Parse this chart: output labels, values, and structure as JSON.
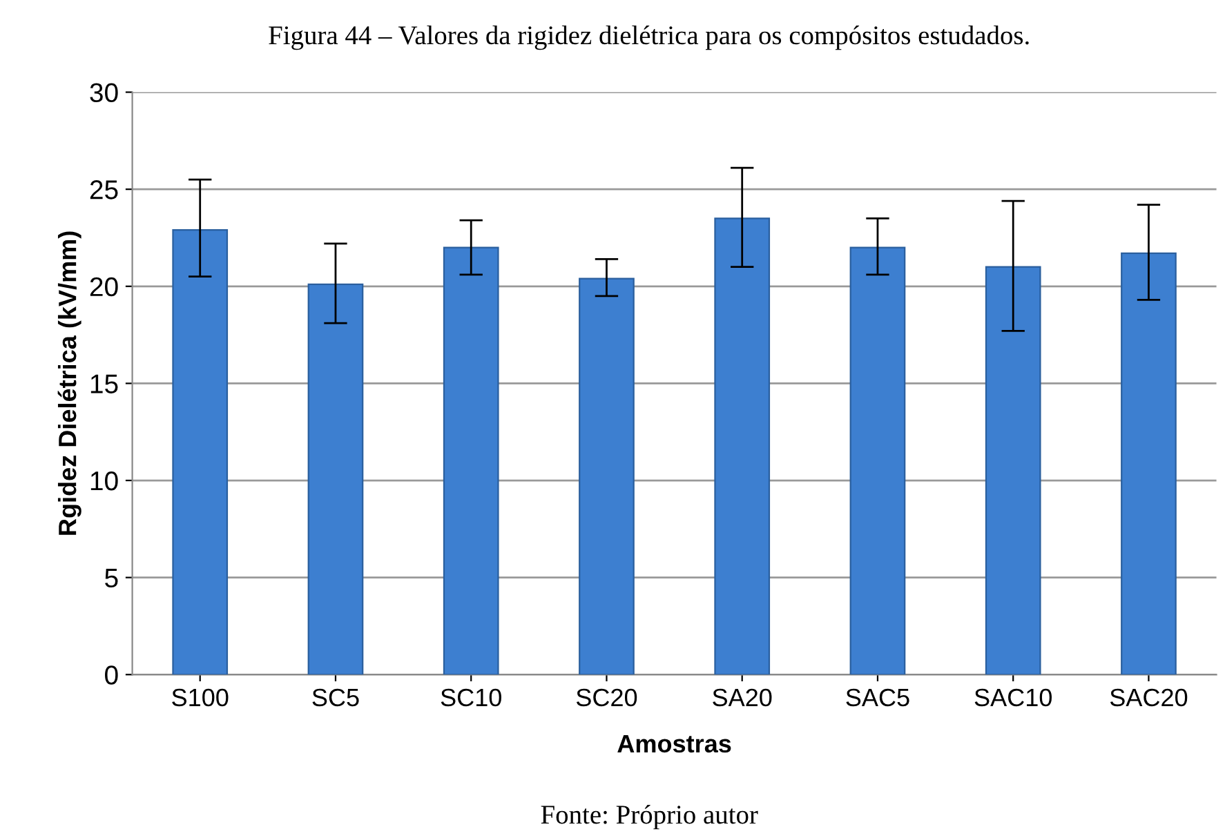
{
  "chart_data": {
    "type": "bar",
    "title": "Figura 44 – Valores da rigidez dielétrica para os compósitos estudados.",
    "xlabel": "Amostras",
    "ylabel": "Rgidez Dielétrica (kV/mm)",
    "categories": [
      "S100",
      "SC5",
      "SC10",
      "SC20",
      "SA20",
      "SAC5",
      "SAC10",
      "SAC20"
    ],
    "values": [
      22.9,
      20.1,
      22.0,
      20.4,
      23.5,
      22.0,
      21.0,
      21.7
    ],
    "errors": [
      [
        20.5,
        25.5
      ],
      [
        18.1,
        22.2
      ],
      [
        20.6,
        23.4
      ],
      [
        19.5,
        21.4
      ],
      [
        21.0,
        26.1
      ],
      [
        20.6,
        23.5
      ],
      [
        17.7,
        24.4
      ],
      [
        19.3,
        24.2
      ]
    ],
    "color": "#3d7fd0",
    "ylim": [
      0,
      30
    ],
    "yticks": [
      0,
      5,
      10,
      15,
      20,
      25,
      30
    ],
    "grid": "y",
    "annotations": [
      "Fonte: Próprio autor"
    ]
  }
}
